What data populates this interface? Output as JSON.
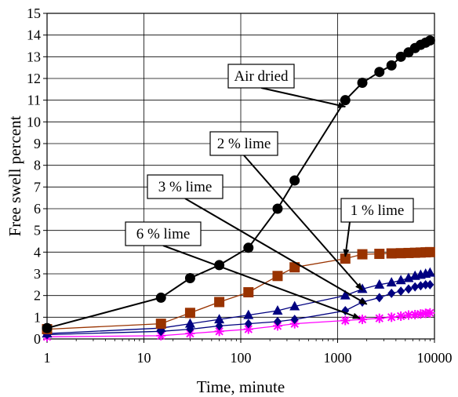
{
  "chart_data": {
    "type": "line",
    "title": "",
    "xlabel": "Time, minute",
    "ylabel": "Free swell percent",
    "x_scale": "log",
    "xlim": [
      1,
      10000
    ],
    "ylim": [
      0,
      15
    ],
    "x_ticks": [
      1,
      10,
      100,
      1000,
      10000
    ],
    "y_ticks": [
      0,
      1,
      2,
      3,
      4,
      5,
      6,
      7,
      8,
      9,
      10,
      11,
      12,
      13,
      14,
      15
    ],
    "grid": true,
    "series": [
      {
        "name": "Air dried",
        "color": "#000000",
        "marker": "circle",
        "x": [
          1,
          15,
          30,
          60,
          120,
          240,
          360,
          1200,
          1800,
          2700,
          3600,
          4500,
          5400,
          6300,
          7200,
          8100,
          9000
        ],
        "y": [
          0.5,
          1.9,
          2.8,
          3.4,
          4.2,
          6.0,
          7.3,
          11.0,
          11.8,
          12.3,
          12.6,
          13.0,
          13.2,
          13.4,
          13.55,
          13.65,
          13.75
        ]
      },
      {
        "name": "1 % lime",
        "color": "#993300",
        "marker": "square",
        "x": [
          1,
          15,
          30,
          60,
          120,
          240,
          360,
          1200,
          1800,
          2700,
          3600,
          4500,
          5400,
          6300,
          7200,
          8100,
          9000
        ],
        "y": [
          0.45,
          0.7,
          1.2,
          1.7,
          2.15,
          2.9,
          3.3,
          3.7,
          3.9,
          3.92,
          3.94,
          3.95,
          3.96,
          3.97,
          3.98,
          3.99,
          4.0
        ]
      },
      {
        "name": "2 % lime",
        "color": "#000080",
        "marker": "triangle",
        "x": [
          1,
          15,
          30,
          60,
          120,
          240,
          360,
          1200,
          1800,
          2700,
          3600,
          4500,
          5400,
          6300,
          7200,
          8100,
          9000
        ],
        "y": [
          0.25,
          0.5,
          0.7,
          0.9,
          1.1,
          1.3,
          1.5,
          2.0,
          2.3,
          2.5,
          2.6,
          2.7,
          2.8,
          2.9,
          2.95,
          3.0,
          3.05
        ]
      },
      {
        "name": "3 % lime",
        "color": "#000080",
        "marker": "diamond",
        "x": [
          1,
          15,
          30,
          60,
          120,
          240,
          360,
          1200,
          1800,
          2700,
          3600,
          4500,
          5400,
          6300,
          7200,
          8100,
          9000
        ],
        "y": [
          0.2,
          0.35,
          0.45,
          0.6,
          0.7,
          0.8,
          0.9,
          1.3,
          1.7,
          1.9,
          2.1,
          2.2,
          2.3,
          2.4,
          2.45,
          2.5,
          2.5
        ]
      },
      {
        "name": "6 % lime",
        "color": "#ff00ff",
        "marker": "star",
        "x": [
          1,
          15,
          30,
          60,
          120,
          240,
          360,
          1200,
          1800,
          2700,
          3600,
          4500,
          5400,
          6300,
          7200,
          8100,
          9000
        ],
        "y": [
          0.1,
          0.15,
          0.25,
          0.35,
          0.45,
          0.6,
          0.7,
          0.85,
          0.9,
          0.95,
          1.0,
          1.05,
          1.1,
          1.12,
          1.15,
          1.18,
          1.2
        ]
      }
    ],
    "annotations": [
      {
        "text": "Air dried",
        "series": 0,
        "arrow_to": [
          1200,
          10.7
        ]
      },
      {
        "text": "2 % lime",
        "series": 2,
        "arrow_to": [
          1800,
          2.25
        ]
      },
      {
        "text": "3 % lime",
        "series": 3,
        "arrow_to": [
          2000,
          1.6
        ]
      },
      {
        "text": "1 % lime",
        "series": 1,
        "arrow_to": [
          1200,
          3.8
        ]
      },
      {
        "text": "6 % lime",
        "series": 4,
        "arrow_to": [
          1700,
          0.95
        ]
      }
    ]
  }
}
